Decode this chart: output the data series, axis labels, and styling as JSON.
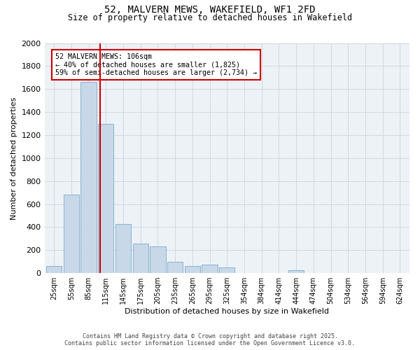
{
  "title_line1": "52, MALVERN MEWS, WAKEFIELD, WF1 2FD",
  "title_line2": "Size of property relative to detached houses in Wakefield",
  "xlabel": "Distribution of detached houses by size in Wakefield",
  "ylabel": "Number of detached properties",
  "bar_labels": [
    "25sqm",
    "55sqm",
    "85sqm",
    "115sqm",
    "145sqm",
    "175sqm",
    "205sqm",
    "235sqm",
    "265sqm",
    "295sqm",
    "325sqm",
    "354sqm",
    "384sqm",
    "414sqm",
    "444sqm",
    "474sqm",
    "504sqm",
    "534sqm",
    "564sqm",
    "594sqm",
    "624sqm"
  ],
  "bar_values": [
    65,
    680,
    1660,
    1300,
    430,
    255,
    230,
    100,
    60,
    75,
    50,
    0,
    0,
    0,
    28,
    0,
    0,
    0,
    0,
    0,
    0
  ],
  "bar_color": "#c8d8e8",
  "bar_edge_color": "#7aabca",
  "vline_x": 2.67,
  "vline_color": "#cc0000",
  "annotation_line1": "52 MALVERN MEWS: 106sqm",
  "annotation_line2": "← 40% of detached houses are smaller (1,825)",
  "annotation_line3": "59% of semi-detached houses are larger (2,734) →",
  "annotation_box_color": "#cc0000",
  "ylim": [
    0,
    2000
  ],
  "yticks": [
    0,
    200,
    400,
    600,
    800,
    1000,
    1200,
    1400,
    1600,
    1800,
    2000
  ],
  "grid_color": "#d0d8e0",
  "bg_color": "#edf2f7",
  "footer_line1": "Contains HM Land Registry data © Crown copyright and database right 2025.",
  "footer_line2": "Contains public sector information licensed under the Open Government Licence v3.0."
}
